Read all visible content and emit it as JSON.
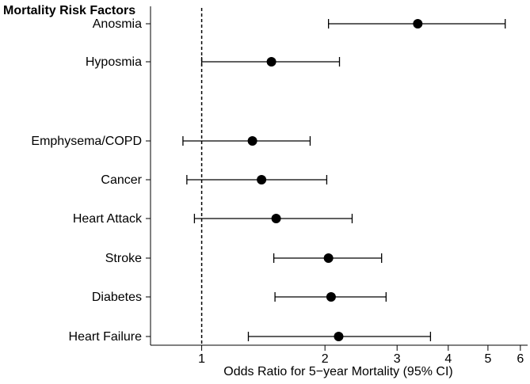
{
  "chart_data": {
    "type": "forest",
    "title": "Mortality Risk Factors",
    "xlabel": "Odds Ratio for 5−year Mortality (95% CI)",
    "xscale": "log",
    "xlim": [
      0.75,
      6.25
    ],
    "xticks": [
      "1",
      "2",
      "3",
      "4",
      "5",
      "6"
    ],
    "reference_line": 1,
    "rows": [
      {
        "label": "Anosmia",
        "or": 3.37,
        "lower": 2.04,
        "upper": 5.51
      },
      {
        "label": "Hyposmia",
        "or": 1.48,
        "lower": 1.0,
        "upper": 2.17
      },
      {
        "label": "Emphysema/COPD",
        "or": 1.33,
        "lower": 0.9,
        "upper": 1.84
      },
      {
        "label": "Cancer",
        "or": 1.4,
        "lower": 0.92,
        "upper": 2.02
      },
      {
        "label": "Heart Attack",
        "or": 1.52,
        "lower": 0.96,
        "upper": 2.33
      },
      {
        "label": "Stroke",
        "or": 2.04,
        "lower": 1.5,
        "upper": 2.75
      },
      {
        "label": "Diabetes",
        "or": 2.07,
        "lower": 1.51,
        "upper": 2.82
      },
      {
        "label": "Heart Failure",
        "or": 2.16,
        "lower": 1.3,
        "upper": 3.62
      }
    ]
  }
}
